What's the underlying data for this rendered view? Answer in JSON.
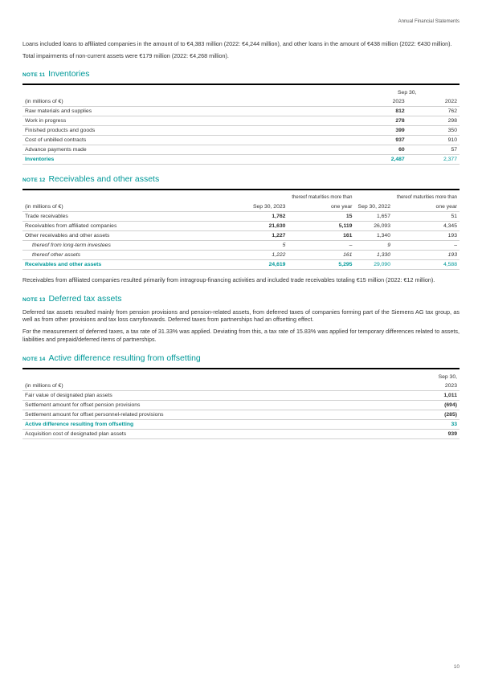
{
  "header": {
    "right": "Annual Financial Statements"
  },
  "intro": {
    "p1": "Loans included loans to affiliated companies in the amount of to €4,383 million (2022: €4,244 million), and other loans in the amount of €438 million (2022: €430 million).",
    "p2": "Total impairments of non-current assets were €179 million (2022: €4,268 million)."
  },
  "note11": {
    "label": "NOTE 11",
    "title": "Inventories",
    "table": {
      "period": "Sep 30,",
      "unit": "(in millions of €)",
      "col1": "2023",
      "col2": "2022",
      "rows": [
        {
          "label": "Raw materials and supplies",
          "v1": "812",
          "v2": "762"
        },
        {
          "label": "Work in progress",
          "v1": "278",
          "v2": "298"
        },
        {
          "label": "Finished products and goods",
          "v1": "399",
          "v2": "350"
        },
        {
          "label": "Cost of unbilled contracts",
          "v1": "937",
          "v2": "910"
        },
        {
          "label": "Advance payments made",
          "v1": "60",
          "v2": "57"
        }
      ],
      "total": {
        "label": "Inventories",
        "v1": "2,487",
        "v2": "2,377"
      }
    }
  },
  "note12": {
    "label": "NOTE 12",
    "title": "Receivables and other assets",
    "table": {
      "unit": "(in millions of €)",
      "sub1": "thereof maturities more than",
      "sub2": "thereof maturities more than",
      "c1": "Sep 30, 2023",
      "c2": "one year",
      "c3": "Sep 30, 2022",
      "c4": "one year",
      "rows": [
        {
          "label": "Trade receivables",
          "v1": "1,762",
          "v2": "15",
          "v3": "1,657",
          "v4": "51"
        },
        {
          "label": "Receivables from affiliated companies",
          "v1": "21,630",
          "v2": "5,119",
          "v3": "26,093",
          "v4": "4,345"
        },
        {
          "label": "Other receivables and other assets",
          "v1": "1,227",
          "v2": "161",
          "v3": "1,340",
          "v4": "193"
        },
        {
          "label": "thereof from long-term investees",
          "v1": "5",
          "v2": "–",
          "v3": "9",
          "v4": "–",
          "italic": true
        },
        {
          "label": "thereof other assets",
          "v1": "1,222",
          "v2": "161",
          "v3": "1,330",
          "v4": "193",
          "italic": true
        }
      ],
      "total": {
        "label": "Receivables and other assets",
        "v1": "24,619",
        "v2": "5,295",
        "v3": "29,090",
        "v4": "4,588"
      }
    },
    "para": "Receivables from affiliated companies resulted primarily from intragroup-financing activities and included trade receivables totaling €15 million (2022: €12 million)."
  },
  "note13": {
    "label": "NOTE 13",
    "title": "Deferred tax assets",
    "p1": "Deferred tax assets resulted mainly from pension provisions and pension-related assets, from deferred taxes of companies forming part of the Siemens AG tax group, as well as from other provisions and tax loss carryforwards. Deferred taxes from partnerships had an offsetting effect.",
    "p2": "For the measurement of deferred taxes, a tax rate of 31.33% was applied. Deviating from this, a tax rate of 15.83% was applied for temporary differences related to assets, liabilities and prepaid/deferred items of partnerships."
  },
  "note14": {
    "label": "NOTE 14",
    "title": "Active difference resulting from offsetting",
    "table": {
      "period": "Sep 30,",
      "unit": "(in millions of €)",
      "col": "2023",
      "rows": [
        {
          "label": "Fair value of designated plan assets",
          "v": "1,011"
        },
        {
          "label": "Settlement amount for offset pension provisions",
          "v": "(694)"
        },
        {
          "label": "Settlement amount for offset personnel-related provisions",
          "v": "(285)"
        }
      ],
      "total": {
        "label": "Active difference resulting from offsetting",
        "v": "33"
      },
      "after": {
        "label": "Acquisition cost of designated plan assets",
        "v": "939"
      }
    }
  },
  "page_number": "10"
}
